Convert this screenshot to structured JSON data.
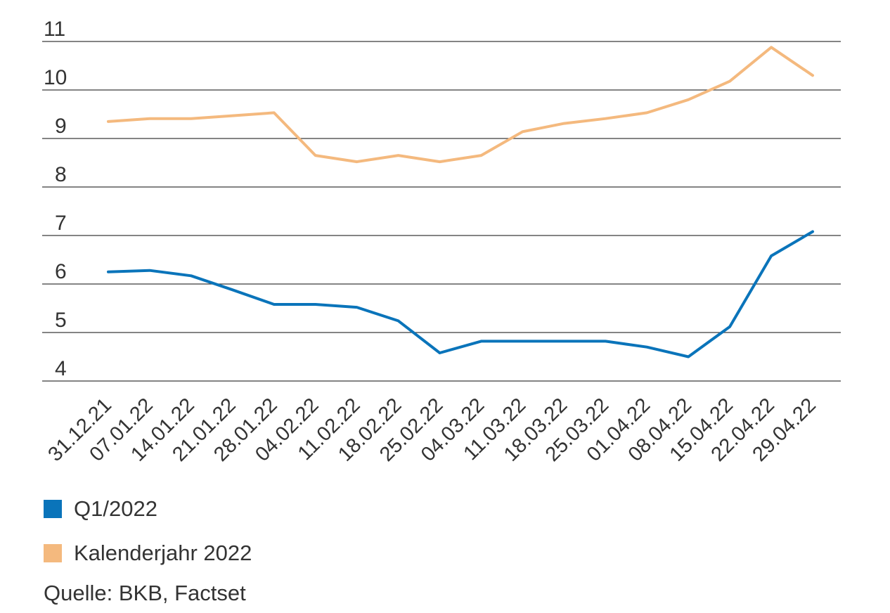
{
  "chart_data": {
    "type": "line",
    "categories": [
      "31.12.21",
      "07.01.22",
      "14.01.22",
      "21.01.22",
      "28.01.22",
      "04.02.22",
      "11.02.22",
      "18.02.22",
      "25.02.22",
      "04.03.22",
      "11.03.22",
      "18.03.22",
      "25.03.22",
      "01.04.22",
      "08.04.22",
      "15.04.22",
      "22.04.22",
      "29.04.22"
    ],
    "series": [
      {
        "name": "Q1/2022",
        "color": "#0a74ba",
        "values": [
          6.25,
          6.28,
          6.17,
          5.88,
          5.58,
          5.58,
          5.52,
          5.24,
          4.58,
          4.82,
          4.82,
          4.82,
          4.82,
          4.7,
          4.5,
          5.12,
          6.58,
          7.08
        ]
      },
      {
        "name": "Kalenderjahr 2022",
        "color": "#f4b97e",
        "values": [
          9.35,
          9.41,
          9.41,
          9.47,
          9.53,
          8.65,
          8.52,
          8.65,
          8.52,
          8.65,
          9.14,
          9.31,
          9.41,
          9.53,
          9.8,
          10.18,
          10.88,
          10.3
        ]
      }
    ],
    "yticks": [
      4,
      5,
      6,
      7,
      8,
      9,
      10,
      11
    ],
    "ylim": [
      3.7,
      11.3
    ],
    "grid": true,
    "legend": "bottom-left"
  },
  "source": "Quelle: BKB, Factset"
}
